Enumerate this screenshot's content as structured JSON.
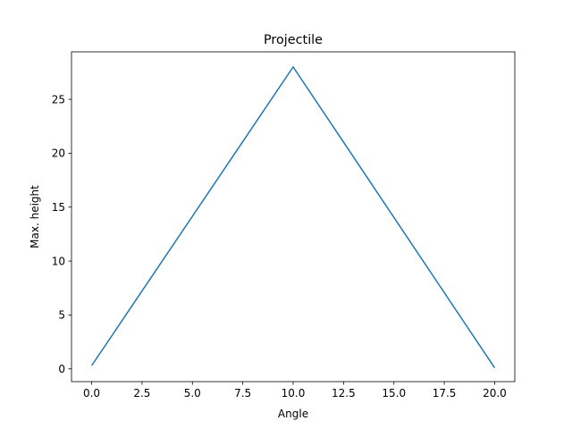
{
  "chart_data": {
    "type": "line",
    "title": "Projectile",
    "xlabel": "Angle",
    "ylabel": "Max. height",
    "xlim": [
      -1.0,
      21.0
    ],
    "ylim": [
      -1.18,
      29.4
    ],
    "xticks": [
      0.0,
      2.5,
      5.0,
      7.5,
      10.0,
      12.5,
      15.0,
      17.5,
      20.0
    ],
    "xtick_labels": [
      "0.0",
      "2.5",
      "5.0",
      "7.5",
      "10.0",
      "12.5",
      "15.0",
      "17.5",
      "20.0"
    ],
    "yticks": [
      0,
      5,
      10,
      15,
      20,
      25
    ],
    "ytick_labels": [
      "0",
      "5",
      "10",
      "15",
      "20",
      "25"
    ],
    "grid": false,
    "series": [
      {
        "color": "#1f77b4",
        "x": [
          0,
          10,
          20
        ],
        "y": [
          0.3,
          28.0,
          0.1
        ]
      }
    ]
  }
}
